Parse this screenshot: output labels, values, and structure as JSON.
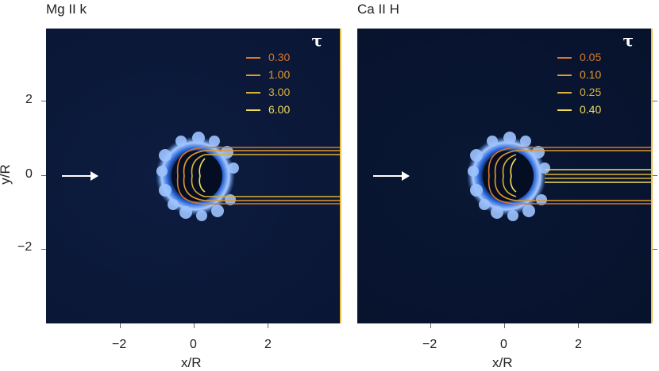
{
  "figure": {
    "x_axis_title": "x/R",
    "y_axis_title": "y/R",
    "x_tick_labels": [
      "−2",
      "0",
      "2"
    ],
    "y_tick_labels": [
      "2",
      "0",
      "−2"
    ],
    "axis_range": [
      -4,
      4
    ]
  },
  "panels": [
    {
      "title": "Mg II k",
      "legend_title": "τ",
      "legend": [
        {
          "value": "0.30",
          "color": "#d9782a"
        },
        {
          "value": "1.00",
          "color": "#e39a2e"
        },
        {
          "value": "3.00",
          "color": "#d9b13a"
        },
        {
          "value": "6.00",
          "color": "#f3de5a"
        }
      ]
    },
    {
      "title": "Ca II H",
      "legend_title": "τ",
      "legend": [
        {
          "value": "0.05",
          "color": "#d9782a"
        },
        {
          "value": "0.10",
          "color": "#e39a2e"
        },
        {
          "value": "0.25",
          "color": "#d9b13a"
        },
        {
          "value": "0.40",
          "color": "#f3de5a"
        }
      ]
    }
  ],
  "colors": {
    "background_left": "#0b1838",
    "background_right": "#081430",
    "cloud": "#6fa8ff",
    "arrow": "#ffffff"
  }
}
